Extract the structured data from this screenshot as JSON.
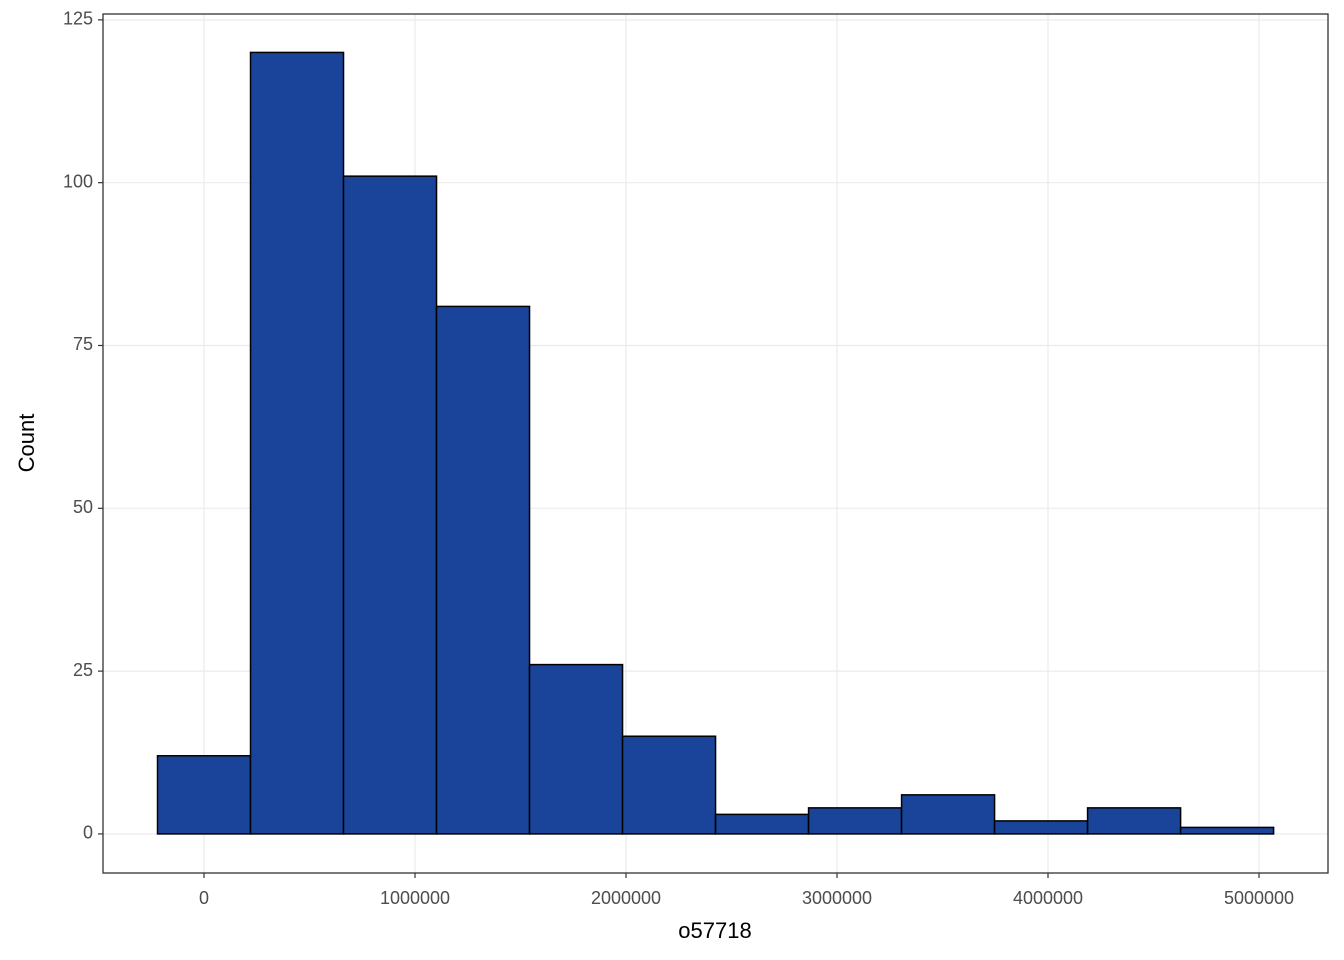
{
  "chart_data": {
    "type": "histogram",
    "x_label": "o57718",
    "y_label": "Count",
    "bins": [
      -220400,
      220400,
      661200,
      1102000,
      1542800,
      1983600,
      2424400,
      2865200,
      3306000,
      3746800,
      4187600,
      4628400,
      5069200
    ],
    "values": [
      12,
      120,
      101,
      81,
      26,
      15,
      3,
      4,
      6,
      2,
      4,
      1
    ],
    "color": "#1a4499",
    "edgecolor": "#000000",
    "xlim": [
      -478700,
      5327000
    ],
    "ylim": [
      -6,
      125.9
    ],
    "xticks": [
      0,
      1000000,
      2000000,
      3000000,
      4000000,
      5000000
    ],
    "yticks": [
      0,
      25,
      50,
      75,
      100,
      125
    ],
    "grid": true
  }
}
